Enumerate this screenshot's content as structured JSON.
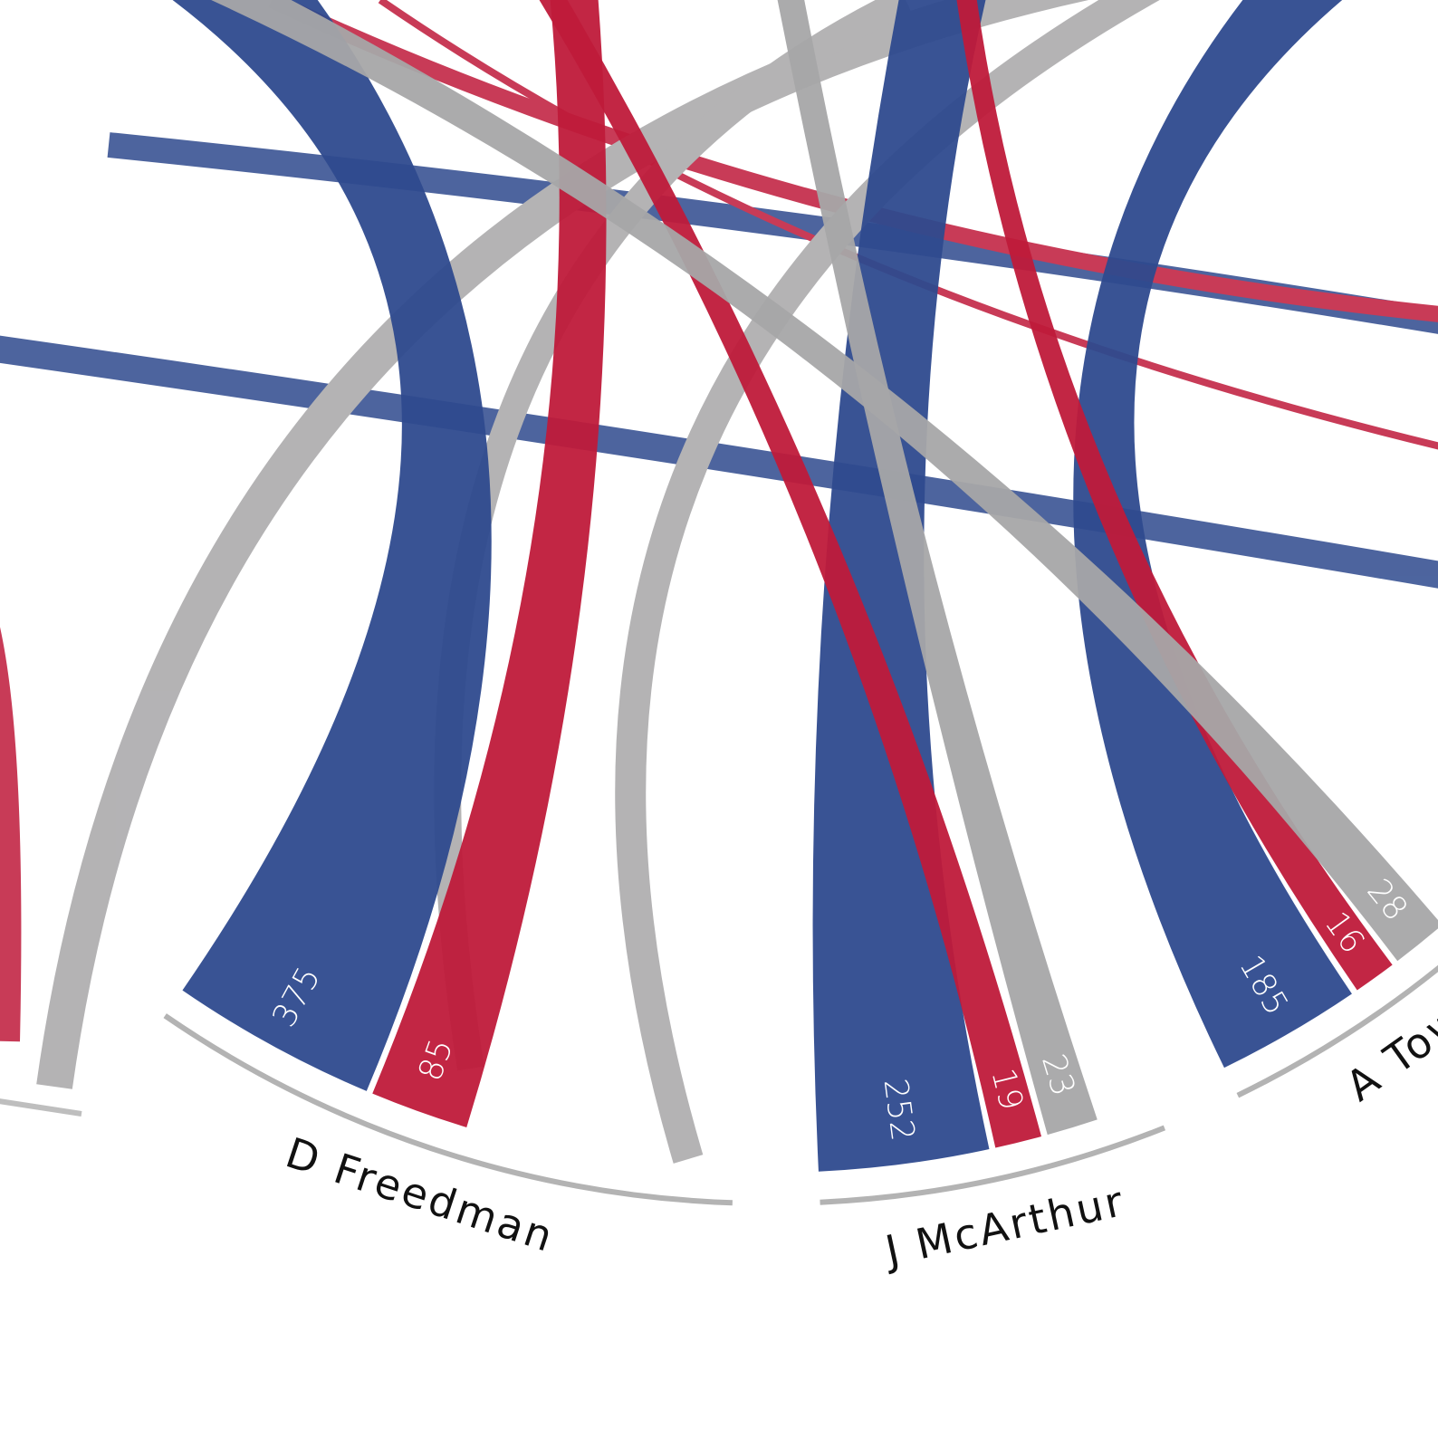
{
  "chart_data": {
    "type": "chord",
    "groups": [
      {
        "name": "D Freedman",
        "segments": [
          {
            "value": 375,
            "color": "#2e4a8e"
          },
          {
            "value": 85,
            "color": "#bf1a3a"
          }
        ]
      },
      {
        "name": "J McArthur",
        "segments": [
          {
            "value": 252,
            "color": "#2e4a8e"
          },
          {
            "value": 19,
            "color": "#bf1a3a"
          },
          {
            "value": 23,
            "color": "#a7a6a8"
          }
        ]
      },
      {
        "name": "A Town",
        "segments": [
          {
            "value": 185,
            "color": "#2e4a8e"
          },
          {
            "value": 16,
            "color": "#bf1a3a"
          },
          {
            "value": 28,
            "color": "#a7a6a8"
          }
        ]
      }
    ]
  }
}
